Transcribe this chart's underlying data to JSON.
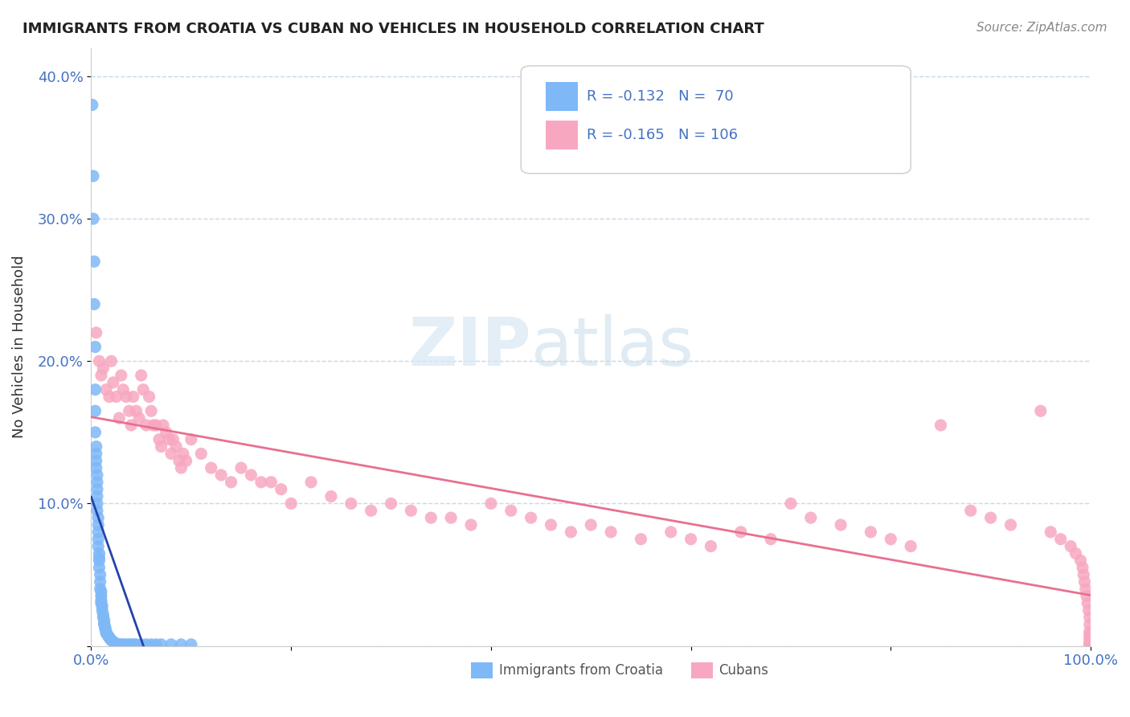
{
  "title": "IMMIGRANTS FROM CROATIA VS CUBAN NO VEHICLES IN HOUSEHOLD CORRELATION CHART",
  "source": "Source: ZipAtlas.com",
  "ylabel": "No Vehicles in Household",
  "xlim": [
    0.0,
    1.0
  ],
  "ylim": [
    0.0,
    0.42
  ],
  "yticks": [
    0.0,
    0.1,
    0.2,
    0.3,
    0.4
  ],
  "ytick_labels": [
    "",
    "10.0%",
    "20.0%",
    "30.0%",
    "40.0%"
  ],
  "xticks": [
    0.0,
    0.2,
    0.4,
    0.6,
    0.8,
    1.0
  ],
  "xtick_labels": [
    "0.0%",
    "",
    "",
    "",
    "",
    "100.0%"
  ],
  "r1": -0.132,
  "n1": 70,
  "r2": -0.165,
  "n2": 106,
  "color_croatia": "#7eb8f7",
  "color_cuban": "#f7a8c0",
  "color_text_blue": "#4472c4",
  "color_regression_blue": "#2244aa",
  "color_regression_pink": "#e87090",
  "background": "#ffffff",
  "grid_color": "#c8d8e8",
  "croatia_x": [
    0.001,
    0.002,
    0.002,
    0.003,
    0.003,
    0.004,
    0.004,
    0.004,
    0.004,
    0.005,
    0.005,
    0.005,
    0.005,
    0.006,
    0.006,
    0.006,
    0.006,
    0.006,
    0.006,
    0.007,
    0.007,
    0.007,
    0.007,
    0.007,
    0.008,
    0.008,
    0.008,
    0.008,
    0.009,
    0.009,
    0.009,
    0.01,
    0.01,
    0.01,
    0.01,
    0.011,
    0.011,
    0.012,
    0.012,
    0.013,
    0.013,
    0.013,
    0.014,
    0.014,
    0.015,
    0.015,
    0.016,
    0.017,
    0.018,
    0.019,
    0.02,
    0.022,
    0.024,
    0.025,
    0.028,
    0.03,
    0.032,
    0.035,
    0.038,
    0.04,
    0.043,
    0.045,
    0.05,
    0.055,
    0.06,
    0.065,
    0.07,
    0.08,
    0.09,
    0.1
  ],
  "croatia_y": [
    0.38,
    0.33,
    0.3,
    0.27,
    0.24,
    0.21,
    0.18,
    0.165,
    0.15,
    0.14,
    0.135,
    0.13,
    0.125,
    0.12,
    0.115,
    0.11,
    0.105,
    0.1,
    0.095,
    0.09,
    0.085,
    0.08,
    0.075,
    0.07,
    0.065,
    0.062,
    0.06,
    0.055,
    0.05,
    0.045,
    0.04,
    0.038,
    0.035,
    0.032,
    0.03,
    0.028,
    0.025,
    0.022,
    0.02,
    0.018,
    0.016,
    0.015,
    0.013,
    0.012,
    0.01,
    0.009,
    0.008,
    0.007,
    0.006,
    0.005,
    0.004,
    0.003,
    0.002,
    0.001,
    0.001,
    0.001,
    0.001,
    0.001,
    0.001,
    0.001,
    0.001,
    0.001,
    0.001,
    0.001,
    0.001,
    0.001,
    0.001,
    0.001,
    0.001,
    0.001
  ],
  "cuban_x": [
    0.005,
    0.008,
    0.01,
    0.012,
    0.015,
    0.018,
    0.02,
    0.022,
    0.025,
    0.028,
    0.03,
    0.032,
    0.035,
    0.038,
    0.04,
    0.042,
    0.045,
    0.048,
    0.05,
    0.052,
    0.055,
    0.058,
    0.06,
    0.062,
    0.065,
    0.068,
    0.07,
    0.072,
    0.075,
    0.078,
    0.08,
    0.082,
    0.085,
    0.088,
    0.09,
    0.092,
    0.095,
    0.1,
    0.11,
    0.12,
    0.13,
    0.14,
    0.15,
    0.16,
    0.17,
    0.18,
    0.19,
    0.2,
    0.22,
    0.24,
    0.26,
    0.28,
    0.3,
    0.32,
    0.34,
    0.36,
    0.38,
    0.4,
    0.42,
    0.44,
    0.46,
    0.48,
    0.5,
    0.52,
    0.55,
    0.58,
    0.6,
    0.62,
    0.65,
    0.68,
    0.7,
    0.72,
    0.75,
    0.78,
    0.8,
    0.82,
    0.85,
    0.88,
    0.9,
    0.92,
    0.95,
    0.96,
    0.97,
    0.98,
    0.985,
    0.99,
    0.992,
    0.993,
    0.994,
    0.995,
    0.996,
    0.997,
    0.998,
    0.999,
    0.999,
    0.999,
    0.999,
    0.999,
    0.999,
    0.999,
    0.999,
    0.999,
    0.999,
    0.999,
    0.999,
    0.999
  ],
  "cuban_y": [
    0.22,
    0.2,
    0.19,
    0.195,
    0.18,
    0.175,
    0.2,
    0.185,
    0.175,
    0.16,
    0.19,
    0.18,
    0.175,
    0.165,
    0.155,
    0.175,
    0.165,
    0.16,
    0.19,
    0.18,
    0.155,
    0.175,
    0.165,
    0.155,
    0.155,
    0.145,
    0.14,
    0.155,
    0.15,
    0.145,
    0.135,
    0.145,
    0.14,
    0.13,
    0.125,
    0.135,
    0.13,
    0.145,
    0.135,
    0.125,
    0.12,
    0.115,
    0.125,
    0.12,
    0.115,
    0.115,
    0.11,
    0.1,
    0.115,
    0.105,
    0.1,
    0.095,
    0.1,
    0.095,
    0.09,
    0.09,
    0.085,
    0.1,
    0.095,
    0.09,
    0.085,
    0.08,
    0.085,
    0.08,
    0.075,
    0.08,
    0.075,
    0.07,
    0.08,
    0.075,
    0.1,
    0.09,
    0.085,
    0.08,
    0.075,
    0.07,
    0.155,
    0.095,
    0.09,
    0.085,
    0.165,
    0.08,
    0.075,
    0.07,
    0.065,
    0.06,
    0.055,
    0.05,
    0.045,
    0.04,
    0.035,
    0.03,
    0.025,
    0.02,
    0.015,
    0.01,
    0.008,
    0.006,
    0.004,
    0.002,
    0.001,
    0.001,
    0.001,
    0.001,
    0.001,
    0.001
  ]
}
